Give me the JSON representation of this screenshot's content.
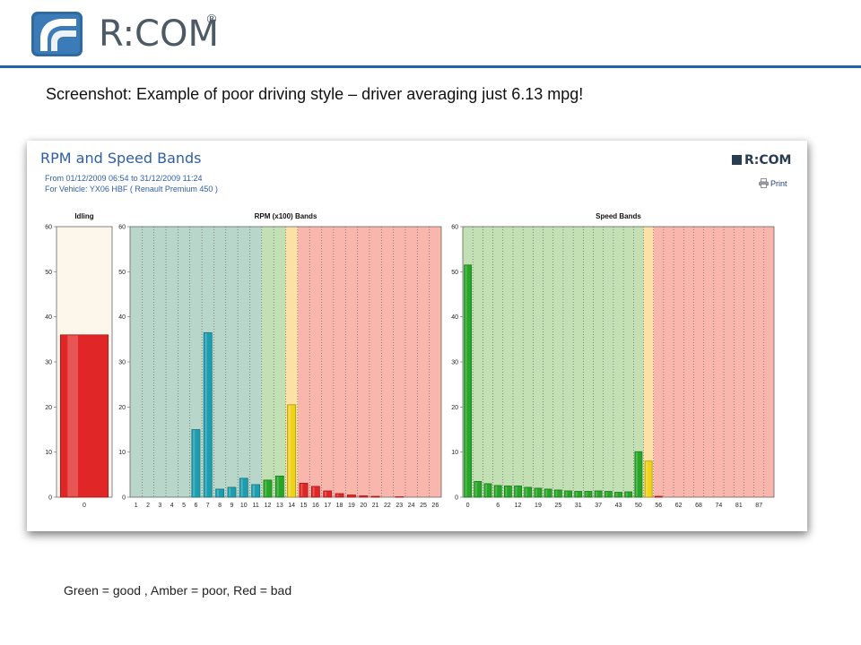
{
  "header": {
    "logo_text": "R:COM",
    "logo_reg": "®",
    "logo_mark_color": "#2f6aa3",
    "rule_color": "#1f63a6"
  },
  "caption": "Screenshot: Example of  poor driving style – driver averaging just 6.13 mpg!",
  "panel": {
    "title": "RPM and Speed Bands",
    "date_range": "From 01/12/2009 06:54 to 31/12/2009 11:24",
    "vehicle": "For Vehicle: YX06 HBF ( Renault Premium 450 )",
    "logo_text": "R:COM",
    "print_label": "Print",
    "print_icon": "printer-icon"
  },
  "colors": {
    "green_zone": "#c3e0b4",
    "amber_zone": "#fbe1a6",
    "red_zone": "#f9b6ac",
    "teal_zone": "#b9d6ca",
    "idle_zone": "#fdf6ea",
    "green_bar": "#27a627",
    "teal_bar": "#1d9eb0",
    "amber_bar": "#efd21b",
    "red_bar": "#e02626"
  },
  "chart_data": [
    {
      "type": "bar",
      "title": "Idling",
      "categories": [
        "0"
      ],
      "values": [
        36
      ],
      "ylim": [
        0,
        60
      ],
      "yticks": [
        0,
        10,
        20,
        30,
        40,
        50,
        60
      ],
      "bar_colors": [
        "red"
      ],
      "bands": [
        {
          "from": 0,
          "to": 1,
          "zone": "idle"
        }
      ]
    },
    {
      "type": "bar",
      "title": "RPM (x100) Bands",
      "categories": [
        "1",
        "2",
        "3",
        "4",
        "5",
        "6",
        "7",
        "8",
        "9",
        "10",
        "11",
        "12",
        "13",
        "14",
        "15",
        "16",
        "17",
        "18",
        "19",
        "20",
        "21",
        "22",
        "23",
        "24",
        "25",
        "26"
      ],
      "values": [
        0,
        0,
        0,
        0,
        0,
        15,
        36.5,
        1.8,
        2.2,
        4.2,
        2.8,
        3.8,
        4.7,
        20.5,
        3.1,
        2.4,
        1.4,
        0.8,
        0.5,
        0.3,
        0.2,
        0,
        0.1,
        0,
        0,
        0
      ],
      "ylim": [
        0,
        60
      ],
      "yticks": [
        0,
        10,
        20,
        30,
        40,
        50,
        60
      ],
      "bar_colors": [
        "teal",
        "teal",
        "teal",
        "teal",
        "teal",
        "teal",
        "teal",
        "teal",
        "teal",
        "teal",
        "teal",
        "green",
        "green",
        "amber",
        "red",
        "red",
        "red",
        "red",
        "red",
        "red",
        "red",
        "red",
        "red",
        "red",
        "red",
        "red"
      ],
      "bands": [
        {
          "from": 0,
          "to": 11,
          "zone": "teal"
        },
        {
          "from": 11,
          "to": 13,
          "zone": "green"
        },
        {
          "from": 13,
          "to": 14,
          "zone": "amber"
        },
        {
          "from": 14,
          "to": 26,
          "zone": "red"
        }
      ]
    },
    {
      "type": "bar",
      "title": "Speed Bands",
      "categories": [
        "0",
        "",
        "",
        "6",
        "",
        "12",
        "",
        "19",
        "",
        "25",
        "",
        "31",
        "",
        "37",
        "",
        "43",
        "",
        "50",
        "",
        "56",
        "",
        "62",
        "",
        "68",
        "",
        "74",
        "",
        "81",
        "",
        "87",
        ""
      ],
      "values": [
        51.5,
        3.5,
        3,
        2.6,
        2.5,
        2.5,
        2.2,
        2,
        1.8,
        1.6,
        1.4,
        1.3,
        1.3,
        1.4,
        1.3,
        1.1,
        1.2,
        10.1,
        8,
        0.2,
        0,
        0,
        0,
        0,
        0,
        0,
        0,
        0,
        0,
        0,
        0
      ],
      "ylim": [
        0,
        60
      ],
      "yticks": [
        0,
        10,
        20,
        30,
        40,
        50,
        60
      ],
      "bar_colors": [
        "green",
        "green",
        "green",
        "green",
        "green",
        "green",
        "green",
        "green",
        "green",
        "green",
        "green",
        "green",
        "green",
        "green",
        "green",
        "green",
        "green",
        "green",
        "amber",
        "red",
        "red",
        "red",
        "red",
        "red",
        "red",
        "red",
        "red",
        "red",
        "red",
        "red",
        "red"
      ],
      "bands": [
        {
          "from": 0,
          "to": 18,
          "zone": "green"
        },
        {
          "from": 18,
          "to": 19,
          "zone": "amber"
        },
        {
          "from": 19,
          "to": 31,
          "zone": "red"
        }
      ]
    }
  ],
  "legend_note": "Green = good , Amber = poor, Red = bad"
}
